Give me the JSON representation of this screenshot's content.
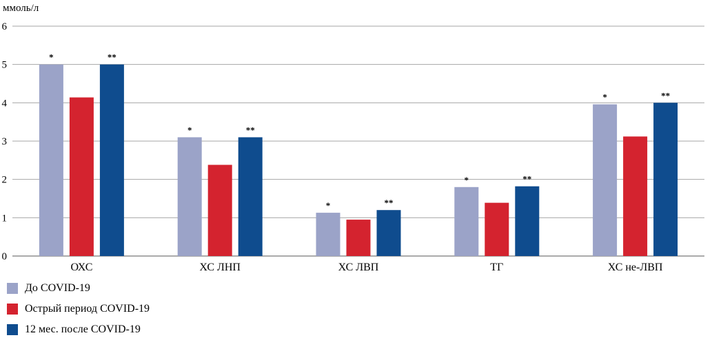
{
  "chart_data": {
    "type": "bar",
    "ylabel": "ммоль/л",
    "ylim": [
      0,
      6
    ],
    "yticks": [
      0,
      1,
      2,
      3,
      4,
      5,
      6
    ],
    "grid": true,
    "legend_position": "bottom-left",
    "categories": [
      "ОХС",
      "ХС ЛНП",
      "ХС ЛВП",
      "ТГ",
      "ХС не-ЛВП"
    ],
    "series": [
      {
        "name": "До COVID-19",
        "color": "#9ba3c8",
        "values": [
          5.0,
          3.1,
          1.13,
          1.8,
          3.96
        ],
        "markers": [
          "*",
          "*",
          "*",
          "*",
          "*"
        ]
      },
      {
        "name": "Острый период COVID-19",
        "color": "#d4232f",
        "values": [
          4.14,
          2.38,
          0.95,
          1.39,
          3.12
        ],
        "markers": [
          "",
          "",
          "",
          "",
          ""
        ]
      },
      {
        "name": "12 мес. после COVID-19",
        "color": "#0f4c8e",
        "values": [
          5.0,
          3.1,
          1.2,
          1.82,
          4.0
        ],
        "markers": [
          "**",
          "**",
          "**",
          "**",
          "**"
        ]
      }
    ]
  }
}
